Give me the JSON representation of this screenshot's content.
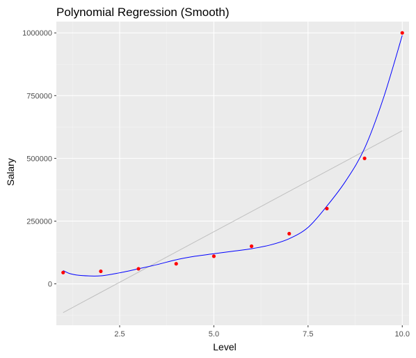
{
  "chart_data": {
    "type": "scatter",
    "title": "Polynomial Regression (Smooth)",
    "xlabel": "Level",
    "ylabel": "Salary",
    "xlim": [
      0.82,
      10.18
    ],
    "ylim": [
      -165000,
      1045000
    ],
    "x_ticks": [
      2.5,
      5.0,
      7.5,
      10.0
    ],
    "x_tick_labels": [
      "2.5",
      "5.0",
      "7.5",
      "10.0"
    ],
    "y_ticks": [
      0,
      250000,
      500000,
      750000,
      1000000
    ],
    "y_tick_labels": [
      "0",
      "250000",
      "500000",
      "750000",
      "1000000"
    ],
    "grid": true,
    "panel_color": "#ebebeb",
    "points": {
      "color": "#ff0000",
      "x": [
        1,
        2,
        3,
        4,
        5,
        6,
        7,
        8,
        9,
        10
      ],
      "y": [
        45000,
        50000,
        60000,
        80000,
        110000,
        150000,
        200000,
        300000,
        500000,
        1000000
      ]
    },
    "linear_fit": {
      "color": "#bfbfbf",
      "x": [
        1,
        10
      ],
      "y": [
        -114455,
        610188
      ]
    },
    "poly_fit": {
      "color": "#0000ff",
      "x": [
        1,
        1.2,
        1.5,
        2,
        2.5,
        3,
        3.5,
        4,
        4.5,
        5,
        5.5,
        6,
        6.5,
        7,
        7.5,
        8,
        8.5,
        9,
        9.5,
        10
      ],
      "y": [
        53000,
        40000,
        33000,
        32000,
        44000,
        60000,
        77000,
        96000,
        110000,
        120000,
        130000,
        140000,
        155000,
        180000,
        225000,
        310000,
        410000,
        540000,
        740000,
        990000
      ]
    }
  }
}
